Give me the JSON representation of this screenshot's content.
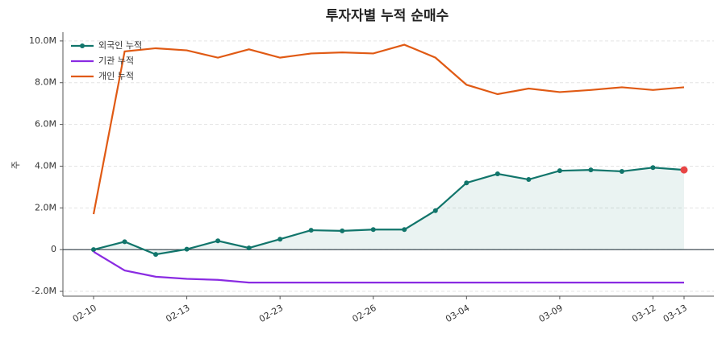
{
  "chart_data": {
    "type": "line",
    "title": "투자자별 누적 순매수",
    "y_label": "주",
    "categories": [
      "02-10",
      null,
      null,
      "02-13",
      null,
      null,
      "02-23",
      null,
      null,
      "02-26",
      null,
      null,
      "03-04",
      null,
      null,
      "03-09",
      null,
      null,
      "03-12",
      "03-13"
    ],
    "series": [
      {
        "name": "외국인 누적",
        "color": "#11756b",
        "marker": true,
        "fill": true,
        "values": [
          0,
          380000,
          -230000,
          20000,
          420000,
          80000,
          500000,
          930000,
          900000,
          960000,
          960000,
          1870000,
          3200000,
          3630000,
          3360000,
          3780000,
          3820000,
          3750000,
          3930000,
          3820000
        ]
      },
      {
        "name": "기관 누적",
        "color": "#8a2be2",
        "marker": false,
        "fill": false,
        "values": [
          -100000,
          -1000000,
          -1300000,
          -1400000,
          -1450000,
          -1580000,
          -1580000,
          -1580000,
          -1580000,
          -1580000,
          -1580000,
          -1580000,
          -1580000,
          -1580000,
          -1580000,
          -1580000,
          -1580000,
          -1580000,
          -1580000,
          -1580000
        ]
      },
      {
        "name": "개인 누적",
        "color": "#e05a14",
        "marker": false,
        "fill": false,
        "values": [
          1700000,
          9500000,
          9650000,
          9550000,
          9200000,
          9600000,
          9200000,
          9400000,
          9450000,
          9400000,
          9820000,
          9200000,
          7900000,
          7450000,
          7720000,
          7550000,
          7650000,
          7780000,
          7650000,
          7780000
        ]
      }
    ],
    "last_point_color": "#e84545",
    "ylim": [
      -2230000,
      10420000
    ],
    "yticks": [
      {
        "value": -2000000,
        "label": "-2.0M"
      },
      0,
      {
        "value": 2000000,
        "label": "2.0M"
      },
      {
        "value": 4000000,
        "label": "4.0M"
      },
      {
        "value": 6000000,
        "label": "6.0M"
      },
      {
        "value": 8000000,
        "label": "8.0M"
      },
      {
        "value": 10000000,
        "label": "10.0M"
      }
    ],
    "grid": true,
    "legend": "upper left"
  }
}
